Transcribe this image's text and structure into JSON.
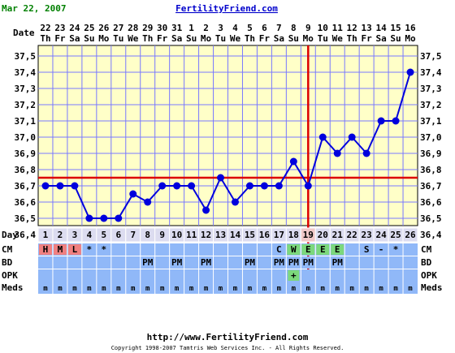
{
  "header": {
    "date_text": "Mar 22, 2007",
    "site_title": "FertilityFriend.com"
  },
  "footer": {
    "url": "http://www.FertilityFriend.com",
    "copyright": "Copyright 1998-2007 Tamtris Web Services Inc. - All Rights Reserved."
  },
  "row_labels": {
    "date": "Date",
    "day": "Day",
    "cm": "CM",
    "bd": "BD",
    "opk": "OPK",
    "meds": "Meds"
  },
  "colors": {
    "plot_bg": "#ffffc8",
    "grid": "#7878ff",
    "line": "#0000dd",
    "red": "#dd0000",
    "row_blue": "#90b8f8",
    "day_bg": "#dcdcf0",
    "day_hl": "#f0c8c8",
    "cm_pink": "#f08080",
    "cm_green": "#7cd87c",
    "header_green": "#008000",
    "site_blue": "#0000cc"
  },
  "chart_data": {
    "type": "line",
    "title": "FertilityFriend.com",
    "dates": [
      "22",
      "23",
      "24",
      "25",
      "26",
      "27",
      "28",
      "29",
      "30",
      "31",
      "1",
      "2",
      "3",
      "4",
      "5",
      "6",
      "7",
      "8",
      "9",
      "10",
      "11",
      "12",
      "13",
      "14",
      "15",
      "16"
    ],
    "weekdays": [
      "Th",
      "Fr",
      "Sa",
      "Su",
      "Mo",
      "Tu",
      "We",
      "Th",
      "Fr",
      "Sa",
      "Su",
      "Mo",
      "Tu",
      "We",
      "Th",
      "Fr",
      "Sa",
      "Su",
      "Mo",
      "Tu",
      "We",
      "Th",
      "Fr",
      "Sa",
      "Su",
      "Mo"
    ],
    "days": [
      1,
      2,
      3,
      4,
      5,
      6,
      7,
      8,
      9,
      10,
      11,
      12,
      13,
      14,
      15,
      16,
      17,
      18,
      19,
      20,
      21,
      22,
      23,
      24,
      25,
      26
    ],
    "temperatures": [
      36.7,
      36.7,
      36.7,
      36.5,
      36.5,
      36.5,
      36.65,
      36.6,
      36.7,
      36.7,
      36.7,
      36.55,
      36.75,
      36.6,
      36.7,
      36.7,
      36.7,
      36.85,
      36.7,
      37.0,
      36.9,
      37.0,
      36.9,
      37.1,
      37.1,
      37.4
    ],
    "ylim": [
      36.4,
      37.5
    ],
    "yticks": [
      "37,5",
      "37,4",
      "37,3",
      "37,2",
      "37,1",
      "37,0",
      "36,9",
      "36,8",
      "36,7",
      "36,6",
      "36,5",
      "36,4"
    ],
    "coverline": 36.75,
    "ovulation_day": 19,
    "cm": [
      "H",
      "M",
      "L",
      "*",
      "*",
      "",
      "",
      "",
      "",
      "",
      "",
      "",
      "",
      "",
      "",
      "",
      "C",
      "W",
      "E",
      "E",
      "E",
      "",
      "S",
      "-",
      "*",
      ""
    ],
    "cm_colors": [
      "pink",
      "pink",
      "pink",
      "",
      "",
      "",
      "",
      "",
      "",
      "",
      "",
      "",
      "",
      "",
      "",
      "",
      "",
      "green",
      "green",
      "green",
      "green",
      "",
      "",
      "",
      "",
      ""
    ],
    "bd": [
      "",
      "",
      "",
      "",
      "",
      "",
      "",
      "PM",
      "",
      "PM",
      "",
      "PM",
      "",
      "",
      "PM",
      "",
      "PM",
      "PM",
      "PM",
      "",
      "PM",
      "",
      "",
      "",
      "",
      ""
    ],
    "opk": [
      "",
      "",
      "",
      "",
      "",
      "",
      "",
      "",
      "",
      "",
      "",
      "",
      "",
      "",
      "",
      "",
      "",
      "+",
      "",
      "",
      "",
      "",
      "",
      "",
      "",
      ""
    ],
    "meds": [
      "m",
      "m",
      "m",
      "m",
      "m",
      "m",
      "m",
      "m",
      "m",
      "m",
      "m",
      "m",
      "m",
      "m",
      "m",
      "m",
      "m",
      "m",
      "m",
      "m",
      "m",
      "m",
      "m",
      "m",
      "m",
      "m"
    ]
  }
}
